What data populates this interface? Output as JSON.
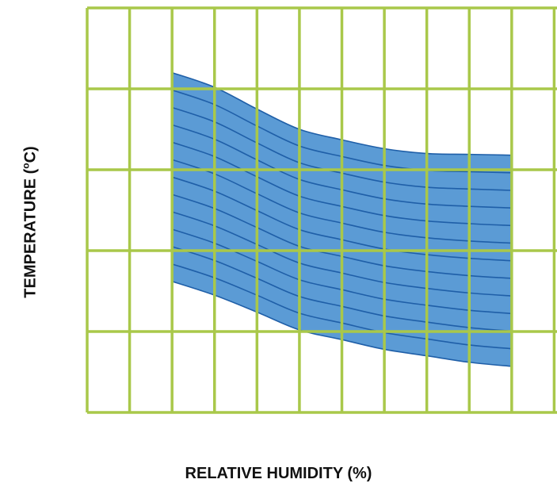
{
  "chart_data": {
    "type": "area",
    "title": "",
    "xlabel": "RELATIVE HUMIDITY (%)",
    "ylabel_main": "TEMPERATURE (",
    "ylabel_sup": "o",
    "ylabel_end": "C)",
    "xlim": [
      0,
      12
    ],
    "ylim": [
      0,
      5
    ],
    "x_gridlines": [
      0,
      1,
      2,
      3,
      4,
      5,
      6,
      7,
      8,
      9,
      10,
      11,
      12
    ],
    "y_gridlines": [
      0,
      1,
      2,
      3,
      4,
      5
    ],
    "grid": true,
    "band": {
      "x": [
        2,
        3,
        4,
        5,
        6,
        7,
        8,
        9,
        10
      ],
      "upper": [
        4.2,
        4.02,
        3.75,
        3.5,
        3.37,
        3.26,
        3.2,
        3.19,
        3.18
      ],
      "lower": [
        1.62,
        1.45,
        1.24,
        1.02,
        0.9,
        0.78,
        0.7,
        0.62,
        0.57
      ],
      "internal_lines": 11
    },
    "colors": {
      "grid": "#a9c84a",
      "band_fill": "#5b9bd5",
      "band_line": "#1f5fa8"
    }
  }
}
